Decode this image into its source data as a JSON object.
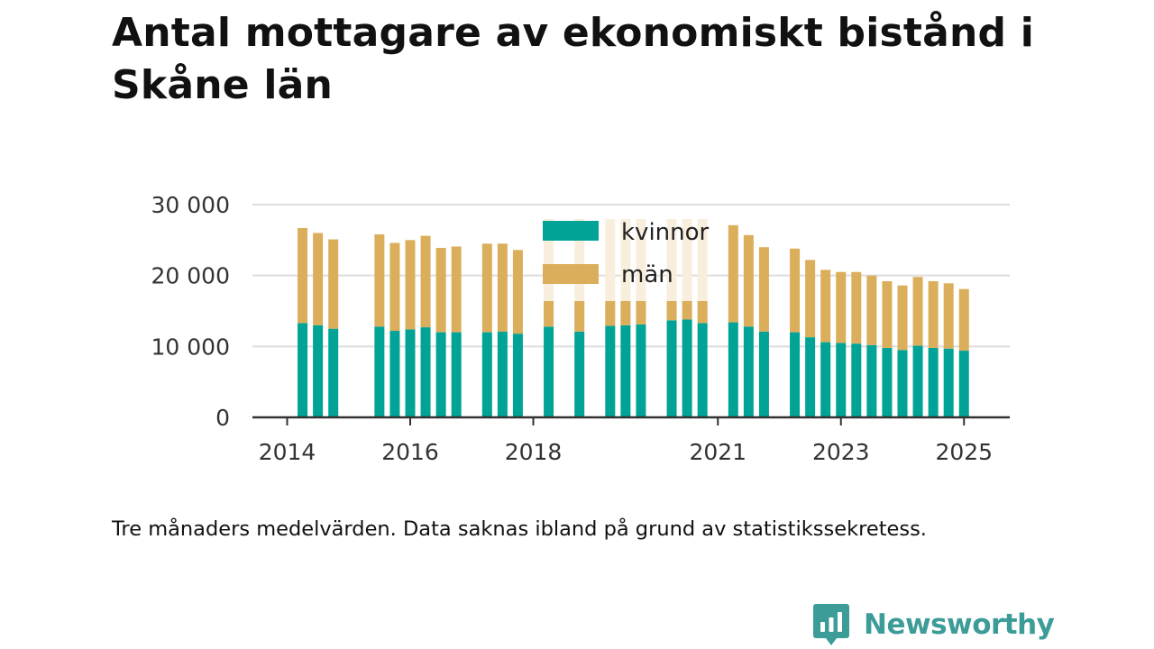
{
  "title": "Antal mottagare av ekonomiskt bistånd i Skåne län",
  "caption": "Tre månaders medelvärden. Data saknas ibland på grund av statistikssekretess.",
  "brand": {
    "name": "Newsworthy"
  },
  "colors": {
    "kvinnor": "#00a396",
    "man": "#dbae5c",
    "man_faded": "#f8eedd",
    "grid": "#dddddd",
    "axis": "#333333",
    "brand": "#3c9c98"
  },
  "chart_data": {
    "type": "bar",
    "stacked": true,
    "title": "Antal mottagare av ekonomiskt bistånd i Skåne län",
    "xlabel": "",
    "ylabel": "",
    "ylim": [
      0,
      30000
    ],
    "yticks": [
      0,
      10000,
      20000,
      30000
    ],
    "ytick_labels": [
      "0",
      "10 000",
      "20 000",
      "30 000"
    ],
    "xticks": [
      2014,
      2016,
      2018,
      2021,
      2023,
      2025
    ],
    "xtick_labels": [
      "2014",
      "2016",
      "2018",
      "2021",
      "2023",
      "2025"
    ],
    "grid": true,
    "legend_position": "top-center",
    "periods": [
      "2014-Q2",
      "2014-Q3",
      "2014-Q4",
      "2015-Q1",
      "2015-Q2",
      "2015-Q3",
      "2015-Q4",
      "2016-Q1",
      "2016-Q2",
      "2016-Q3",
      "2016-Q4",
      "2017-Q1",
      "2017-Q2",
      "2017-Q3",
      "2017-Q4",
      "2018-Q1",
      "2018-Q2",
      "2018-Q3",
      "2018-Q4",
      "2019-Q1",
      "2019-Q2",
      "2019-Q3",
      "2019-Q4",
      "2020-Q1",
      "2020-Q2",
      "2020-Q3",
      "2020-Q4",
      "2021-Q1",
      "2021-Q2",
      "2021-Q3",
      "2021-Q4",
      "2022-Q1",
      "2022-Q2",
      "2022-Q3",
      "2022-Q4",
      "2023-Q1",
      "2023-Q2",
      "2023-Q3",
      "2023-Q4",
      "2024-Q1",
      "2024-Q2",
      "2024-Q3",
      "2024-Q4",
      "2025-Q1",
      "2025-Q2"
    ],
    "series": [
      {
        "name": "kvinnor",
        "values": [
          13300,
          13000,
          12500,
          null,
          null,
          12800,
          12200,
          12400,
          12700,
          12000,
          12000,
          null,
          12000,
          12100,
          11800,
          null,
          12800,
          null,
          12100,
          null,
          12900,
          13000,
          13100,
          null,
          13700,
          13800,
          13300,
          null,
          13400,
          12800,
          12100,
          null,
          12000,
          11300,
          10600,
          10500,
          10400,
          10200,
          9800,
          9500,
          10100,
          9800,
          9700,
          9400,
          null
        ]
      },
      {
        "name": "män",
        "values": [
          13400,
          13000,
          12600,
          null,
          null,
          13000,
          12400,
          12600,
          12900,
          11900,
          12100,
          null,
          12500,
          12400,
          11800,
          null,
          null,
          null,
          null,
          null,
          null,
          null,
          null,
          null,
          null,
          null,
          null,
          null,
          13700,
          12900,
          11900,
          null,
          11800,
          10900,
          10200,
          10000,
          10100,
          9800,
          9400,
          9100,
          9700,
          9400,
          9200,
          8700,
          null
        ]
      }
    ]
  }
}
